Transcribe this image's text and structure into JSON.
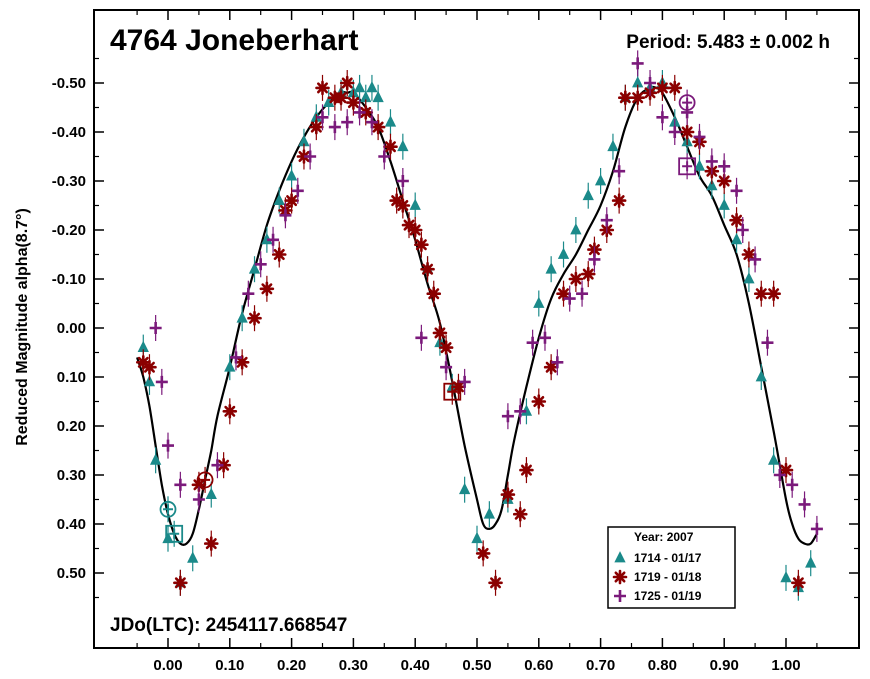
{
  "chart_data": {
    "type": "scatter",
    "title": "4764 Joneberhart",
    "subtitle": "Period: 5.483 ± 0.002 h",
    "footer": "JDo(LTC): 2454117.668547",
    "ylabel": "Reduced Magnitude alpha(8.7°)",
    "xlabel": "",
    "xlim": [
      -0.125,
      1.125
    ],
    "ylim": [
      0.6,
      -0.6
    ],
    "y_inverted": true,
    "grid": false,
    "legend_position": "bottom-right",
    "xticks": [
      0.0,
      0.1,
      0.2,
      0.3,
      0.4,
      0.5,
      0.6,
      0.7,
      0.8,
      0.9,
      1.0
    ],
    "xtick_labels": [
      "0.00",
      "0.10",
      "0.20",
      "0.30",
      "0.40",
      "0.50",
      "0.60",
      "0.70",
      "0.80",
      "0.90",
      "1.00"
    ],
    "yticks": [
      -0.5,
      -0.4,
      -0.3,
      -0.2,
      -0.1,
      0.0,
      0.1,
      0.2,
      0.3,
      0.4,
      0.5
    ],
    "ytick_labels": [
      "-0.50",
      "-0.40",
      "-0.30",
      "-0.20",
      "-0.10",
      "0.00",
      "0.10",
      "0.20",
      "0.30",
      "0.40",
      "0.50"
    ],
    "legend_title": "Year: 2007",
    "series": [
      {
        "name": "1714 - 01/17",
        "marker": "triangle",
        "color": "#1b8a8a",
        "x": [
          -0.04,
          -0.03,
          -0.02,
          0.0,
          0.02,
          0.04,
          0.07,
          0.1,
          0.12,
          0.14,
          0.16,
          0.18,
          0.2,
          0.22,
          0.24,
          0.26,
          0.28,
          0.3,
          0.31,
          0.32,
          0.33,
          0.34,
          0.36,
          0.38,
          0.4,
          0.42,
          0.44,
          0.46,
          0.48,
          0.5,
          0.52,
          0.55,
          0.58,
          0.6,
          0.62,
          0.64,
          0.66,
          0.68,
          0.7,
          0.72,
          0.74,
          0.76,
          0.78,
          0.8,
          0.82,
          0.84,
          0.86,
          0.88,
          0.9,
          0.92,
          0.94,
          0.96,
          0.98,
          1.0,
          1.02,
          1.04
        ],
        "y": [
          0.04,
          0.11,
          0.27,
          0.43,
          0.52,
          0.47,
          0.34,
          0.08,
          -0.02,
          -0.12,
          -0.18,
          -0.26,
          -0.31,
          -0.38,
          -0.43,
          -0.46,
          -0.48,
          -0.48,
          -0.49,
          -0.47,
          -0.49,
          -0.47,
          -0.42,
          -0.37,
          -0.25,
          -0.12,
          0.03,
          0.12,
          0.33,
          0.43,
          0.38,
          0.35,
          0.17,
          -0.05,
          -0.12,
          -0.15,
          -0.2,
          -0.27,
          -0.3,
          -0.37,
          -0.47,
          -0.5,
          -0.49,
          -0.5,
          -0.42,
          -0.38,
          -0.33,
          -0.29,
          -0.25,
          -0.18,
          -0.1,
          0.1,
          0.27,
          0.51,
          0.53,
          0.48
        ]
      },
      {
        "name": "1719 - 01/18",
        "marker": "asterisk",
        "color": "#8b0000",
        "x": [
          -0.04,
          -0.03,
          0.02,
          0.05,
          0.07,
          0.09,
          0.1,
          0.12,
          0.14,
          0.16,
          0.18,
          0.19,
          0.2,
          0.22,
          0.24,
          0.25,
          0.27,
          0.28,
          0.29,
          0.3,
          0.32,
          0.34,
          0.36,
          0.37,
          0.38,
          0.39,
          0.4,
          0.41,
          0.42,
          0.43,
          0.44,
          0.45,
          0.47,
          0.51,
          0.53,
          0.55,
          0.57,
          0.58,
          0.6,
          0.62,
          0.64,
          0.66,
          0.68,
          0.69,
          0.71,
          0.73,
          0.74,
          0.76,
          0.78,
          0.8,
          0.82,
          0.84,
          0.86,
          0.88,
          0.9,
          0.92,
          0.94,
          0.96,
          0.98,
          1.0,
          1.02
        ],
        "y": [
          0.07,
          0.08,
          0.52,
          0.32,
          0.44,
          0.28,
          0.17,
          0.07,
          -0.02,
          -0.08,
          -0.15,
          -0.24,
          -0.26,
          -0.35,
          -0.41,
          -0.49,
          -0.47,
          -0.47,
          -0.5,
          -0.46,
          -0.44,
          -0.41,
          -0.37,
          -0.26,
          -0.25,
          -0.21,
          -0.2,
          -0.17,
          -0.12,
          -0.07,
          0.01,
          0.04,
          0.12,
          0.46,
          0.52,
          0.34,
          0.38,
          0.29,
          0.15,
          0.08,
          -0.07,
          -0.1,
          -0.11,
          -0.16,
          -0.2,
          -0.26,
          -0.47,
          -0.47,
          -0.48,
          -0.49,
          -0.49,
          -0.4,
          -0.38,
          -0.32,
          -0.3,
          -0.22,
          -0.15,
          -0.07,
          -0.07,
          0.29,
          0.52
        ]
      },
      {
        "name": "1725 - 01/19",
        "marker": "plus",
        "color": "#7b1a7b",
        "x": [
          -0.02,
          -0.01,
          0.0,
          0.02,
          0.05,
          0.08,
          0.11,
          0.13,
          0.15,
          0.17,
          0.19,
          0.21,
          0.23,
          0.25,
          0.27,
          0.29,
          0.31,
          0.33,
          0.35,
          0.38,
          0.41,
          0.45,
          0.48,
          0.55,
          0.57,
          0.59,
          0.61,
          0.63,
          0.65,
          0.67,
          0.69,
          0.71,
          0.73,
          0.76,
          0.78,
          0.8,
          0.82,
          0.84,
          0.86,
          0.88,
          0.9,
          0.92,
          0.93,
          0.95,
          0.97,
          0.99,
          1.01,
          1.03,
          1.05
        ],
        "y": [
          0.0,
          0.11,
          0.24,
          0.32,
          0.35,
          0.28,
          0.06,
          -0.07,
          -0.13,
          -0.18,
          -0.23,
          -0.28,
          -0.35,
          -0.43,
          -0.41,
          -0.42,
          -0.44,
          -0.42,
          -0.35,
          -0.3,
          0.02,
          0.08,
          0.11,
          0.18,
          0.17,
          0.03,
          0.02,
          0.07,
          -0.06,
          -0.07,
          -0.14,
          -0.22,
          -0.32,
          -0.54,
          -0.5,
          -0.43,
          -0.4,
          -0.44,
          -0.39,
          -0.34,
          -0.33,
          -0.28,
          -0.2,
          -0.14,
          0.03,
          0.3,
          0.32,
          0.36,
          0.41
        ]
      },
      {
        "name": "",
        "marker": "circle-symbol",
        "color": "#1b8a8a",
        "x": [
          0.0
        ],
        "y": [
          0.37
        ]
      },
      {
        "name": "",
        "marker": "square-symbol",
        "color": "#1b8a8a",
        "x": [
          0.01
        ],
        "y": [
          0.42
        ]
      },
      {
        "name": "",
        "marker": "circle-symbol",
        "color": "#8b0000",
        "x": [
          0.06
        ],
        "y": [
          0.31
        ]
      },
      {
        "name": "",
        "marker": "square-symbol",
        "color": "#8b0000",
        "x": [
          0.46
        ],
        "y": [
          0.13
        ]
      },
      {
        "name": "",
        "marker": "circle-symbol",
        "color": "#7b1a7b",
        "x": [
          0.84
        ],
        "y": [
          -0.46
        ]
      },
      {
        "name": "",
        "marker": "square-symbol",
        "color": "#7b1a7b",
        "x": [
          0.84
        ],
        "y": [
          -0.33
        ]
      }
    ],
    "fit_curve": {
      "color": "#000000",
      "x": [
        -0.05,
        -0.04,
        -0.03,
        -0.02,
        -0.01,
        0.0,
        0.01,
        0.02,
        0.03,
        0.04,
        0.05,
        0.06,
        0.07,
        0.08,
        0.1,
        0.12,
        0.14,
        0.16,
        0.18,
        0.2,
        0.22,
        0.24,
        0.26,
        0.28,
        0.29,
        0.3,
        0.32,
        0.34,
        0.36,
        0.38,
        0.4,
        0.42,
        0.44,
        0.46,
        0.48,
        0.5,
        0.51,
        0.52,
        0.53,
        0.54,
        0.55,
        0.56,
        0.58,
        0.6,
        0.62,
        0.64,
        0.66,
        0.68,
        0.7,
        0.72,
        0.74,
        0.76,
        0.78,
        0.79,
        0.8,
        0.82,
        0.84,
        0.86,
        0.88,
        0.9,
        0.92,
        0.94,
        0.96,
        0.98,
        1.0,
        1.01,
        1.02,
        1.03,
        1.04,
        1.05
      ],
      "y": [
        0.06,
        0.1,
        0.16,
        0.24,
        0.32,
        0.38,
        0.42,
        0.44,
        0.44,
        0.42,
        0.37,
        0.31,
        0.25,
        0.18,
        0.08,
        -0.03,
        -0.12,
        -0.21,
        -0.28,
        -0.34,
        -0.39,
        -0.43,
        -0.46,
        -0.48,
        -0.48,
        -0.48,
        -0.45,
        -0.41,
        -0.34,
        -0.26,
        -0.18,
        -0.09,
        -0.01,
        0.11,
        0.24,
        0.35,
        0.4,
        0.41,
        0.4,
        0.37,
        0.3,
        0.23,
        0.12,
        0.02,
        -0.06,
        -0.11,
        -0.15,
        -0.2,
        -0.25,
        -0.32,
        -0.41,
        -0.47,
        -0.49,
        -0.49,
        -0.48,
        -0.43,
        -0.37,
        -0.31,
        -0.27,
        -0.21,
        -0.15,
        -0.05,
        0.08,
        0.21,
        0.35,
        0.4,
        0.43,
        0.44,
        0.44,
        0.42
      ]
    }
  }
}
